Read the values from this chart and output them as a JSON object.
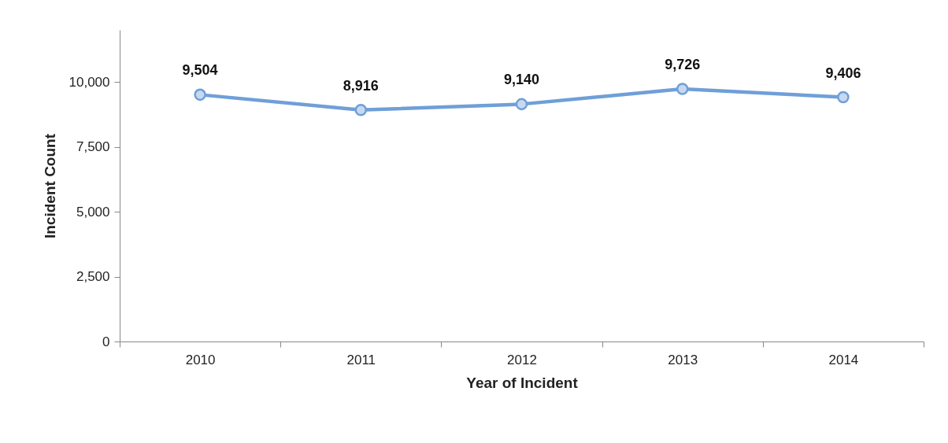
{
  "chart_data": {
    "type": "line",
    "xlabel": "Year of Incident",
    "ylabel": "Incident Count",
    "categories": [
      "2010",
      "2011",
      "2012",
      "2013",
      "2014"
    ],
    "series": [
      {
        "color": "#6f9fd8",
        "values": [
          9504,
          8916,
          9140,
          9726,
          9406
        ],
        "value_labels": [
          "9,504",
          "8,916",
          "9,140",
          "9,726",
          "9,406"
        ]
      }
    ],
    "ylim": [
      0,
      12000
    ],
    "yticks": [
      0,
      {
        "value": 2500,
        "label": "2,500"
      },
      {
        "value": 5000,
        "label": "5,000"
      },
      {
        "value": 7500,
        "label": "7,500"
      },
      {
        "value": 10000,
        "label": "10,000"
      }
    ],
    "marker": "circle",
    "line_style": "solid",
    "grid": false
  }
}
